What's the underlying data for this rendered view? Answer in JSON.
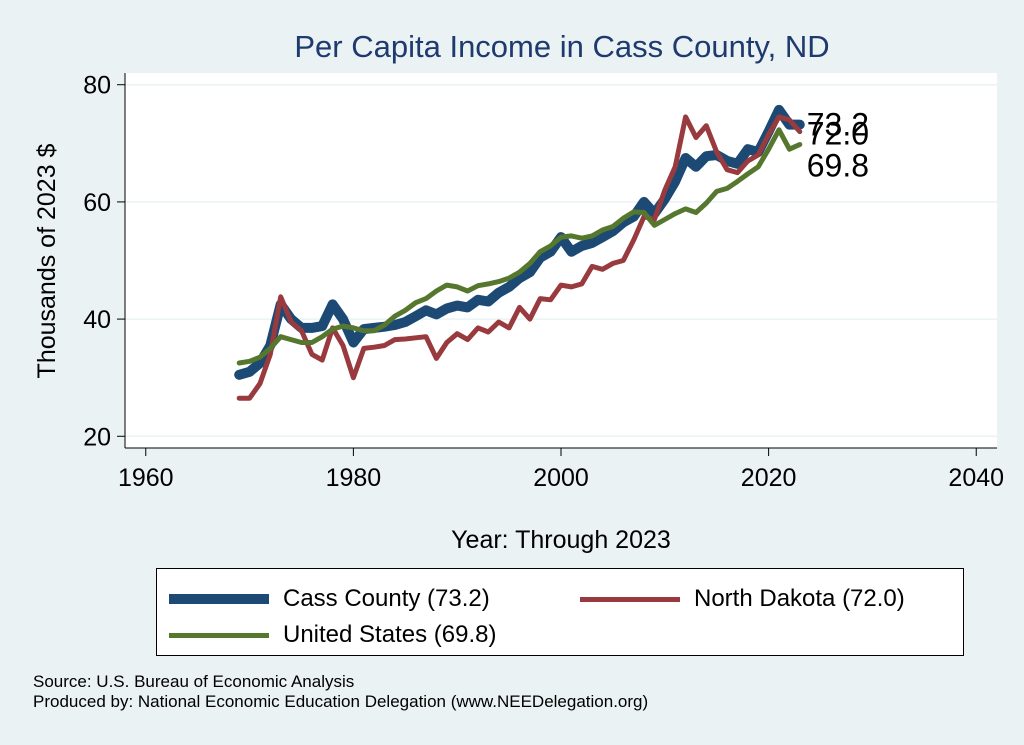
{
  "chart_data": {
    "type": "line",
    "title": "Per Capita Income in Cass County, ND",
    "xlabel": "Year: Through 2023",
    "ylabel": "Thousands of 2023 $",
    "xlim": [
      1958,
      2042
    ],
    "ylim": [
      18,
      82
    ],
    "xticks": [
      1960,
      1980,
      2000,
      2020,
      2040
    ],
    "yticks": [
      20,
      40,
      60,
      80
    ],
    "grid": "horizontal",
    "legend_position": "bottom",
    "series": [
      {
        "name": "Cass County (73.2)",
        "color": "#1c4a74",
        "end_label": "73.2",
        "x": [
          1969,
          1970,
          1971,
          1972,
          1973,
          1974,
          1975,
          1976,
          1977,
          1978,
          1979,
          1980,
          1981,
          1982,
          1983,
          1984,
          1985,
          1986,
          1987,
          1988,
          1989,
          1990,
          1991,
          1992,
          1993,
          1994,
          1995,
          1996,
          1997,
          1998,
          1999,
          2000,
          2001,
          2002,
          2003,
          2004,
          2005,
          2006,
          2007,
          2008,
          2009,
          2010,
          2011,
          2012,
          2013,
          2014,
          2015,
          2016,
          2017,
          2018,
          2019,
          2020,
          2021,
          2022,
          2023
        ],
        "y": [
          30.5,
          31.0,
          32.5,
          35.5,
          42.5,
          40.0,
          38.5,
          38.5,
          38.8,
          42.5,
          40.0,
          36.0,
          38.3,
          38.5,
          38.7,
          39.0,
          39.5,
          40.5,
          41.5,
          40.8,
          41.8,
          42.3,
          42.0,
          43.3,
          43.0,
          44.5,
          45.5,
          47.0,
          48.0,
          50.5,
          51.5,
          54.0,
          51.5,
          52.5,
          53.0,
          54.0,
          55.0,
          56.5,
          57.5,
          60.0,
          58.0,
          60.5,
          63.5,
          67.5,
          66.0,
          67.8,
          68.0,
          67.0,
          66.5,
          69.0,
          68.5,
          72.0,
          75.7,
          73.2,
          73.2
        ]
      },
      {
        "name": "North Dakota (72.0)",
        "color": "#993a3e",
        "end_label": "72.0",
        "x": [
          1969,
          1970,
          1971,
          1972,
          1973,
          1974,
          1975,
          1976,
          1977,
          1978,
          1979,
          1980,
          1981,
          1982,
          1983,
          1984,
          1985,
          1986,
          1987,
          1988,
          1989,
          1990,
          1991,
          1992,
          1993,
          1994,
          1995,
          1996,
          1997,
          1998,
          1999,
          2000,
          2001,
          2002,
          2003,
          2004,
          2005,
          2006,
          2007,
          2008,
          2009,
          2010,
          2011,
          2012,
          2013,
          2014,
          2015,
          2016,
          2017,
          2018,
          2019,
          2020,
          2021,
          2022,
          2023
        ],
        "y": [
          26.5,
          26.5,
          29.0,
          34.0,
          43.8,
          39.5,
          38.0,
          34.0,
          33.0,
          38.5,
          35.5,
          30.0,
          35.0,
          35.2,
          35.5,
          36.5,
          36.6,
          36.8,
          37.0,
          33.3,
          36.0,
          37.5,
          36.5,
          38.5,
          37.8,
          39.5,
          38.5,
          42.0,
          40.0,
          43.5,
          43.3,
          45.8,
          45.5,
          46.0,
          49.0,
          48.5,
          49.5,
          50.0,
          53.5,
          57.5,
          57.0,
          62.0,
          66.0,
          74.5,
          71.0,
          73.0,
          68.5,
          65.5,
          65.0,
          67.0,
          68.0,
          71.5,
          74.5,
          74.0,
          72.0
        ]
      },
      {
        "name": "United States (69.8)",
        "color": "#55772e",
        "end_label": "69.8",
        "x": [
          1969,
          1970,
          1971,
          1972,
          1973,
          1974,
          1975,
          1976,
          1977,
          1978,
          1979,
          1980,
          1981,
          1982,
          1983,
          1984,
          1985,
          1986,
          1987,
          1988,
          1989,
          1990,
          1991,
          1992,
          1993,
          1994,
          1995,
          1996,
          1997,
          1998,
          1999,
          2000,
          2001,
          2002,
          2003,
          2004,
          2005,
          2006,
          2007,
          2008,
          2009,
          2010,
          2011,
          2012,
          2013,
          2014,
          2015,
          2016,
          2017,
          2018,
          2019,
          2020,
          2021,
          2022,
          2023
        ],
        "y": [
          32.5,
          32.8,
          33.5,
          35.0,
          37.0,
          36.5,
          36.0,
          36.0,
          37.0,
          38.3,
          38.8,
          38.5,
          38.0,
          38.0,
          39.0,
          40.5,
          41.5,
          42.8,
          43.5,
          44.8,
          45.8,
          45.5,
          44.8,
          45.7,
          46.0,
          46.4,
          47.0,
          48.0,
          49.5,
          51.5,
          52.5,
          54.0,
          54.2,
          53.8,
          54.2,
          55.2,
          55.8,
          57.2,
          58.3,
          58.2,
          56.0,
          57.0,
          58.0,
          58.8,
          58.2,
          59.8,
          61.8,
          62.3,
          63.5,
          64.8,
          66.0,
          69.0,
          72.3,
          69.0,
          69.8
        ]
      }
    ]
  },
  "footer": {
    "source": "Source: U.S. Bureau of Economic Analysis",
    "produced_by": "Produced by: National Economic Education Delegation (www.NEEDelegation.org)"
  }
}
